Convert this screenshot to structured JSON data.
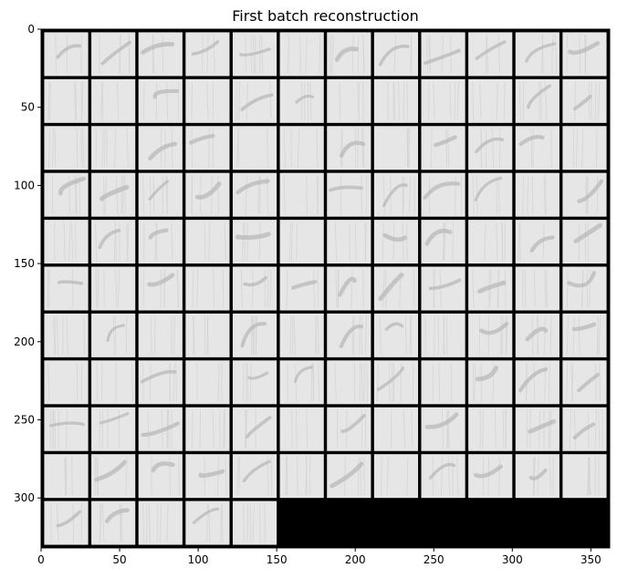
{
  "chart_data": {
    "type": "heatmap",
    "title": "First batch reconstruction",
    "xlabel": "",
    "ylabel": "",
    "xlim": [
      0,
      362
    ],
    "ylim": [
      332,
      0
    ],
    "xticks": [
      0,
      50,
      100,
      150,
      200,
      250,
      300,
      350
    ],
    "yticks": [
      0,
      50,
      100,
      150,
      200,
      250,
      300
    ],
    "grid": {
      "rows": 11,
      "cols": 12,
      "tile_size": 28,
      "padding": 2,
      "image_count": 125,
      "empty_fill": "black"
    },
    "colors": {
      "separator": "#000000",
      "tile_background": "#e6e6e6",
      "stroke_light": "#d2d2d2",
      "stroke_dark": "#b8b8b8"
    }
  }
}
